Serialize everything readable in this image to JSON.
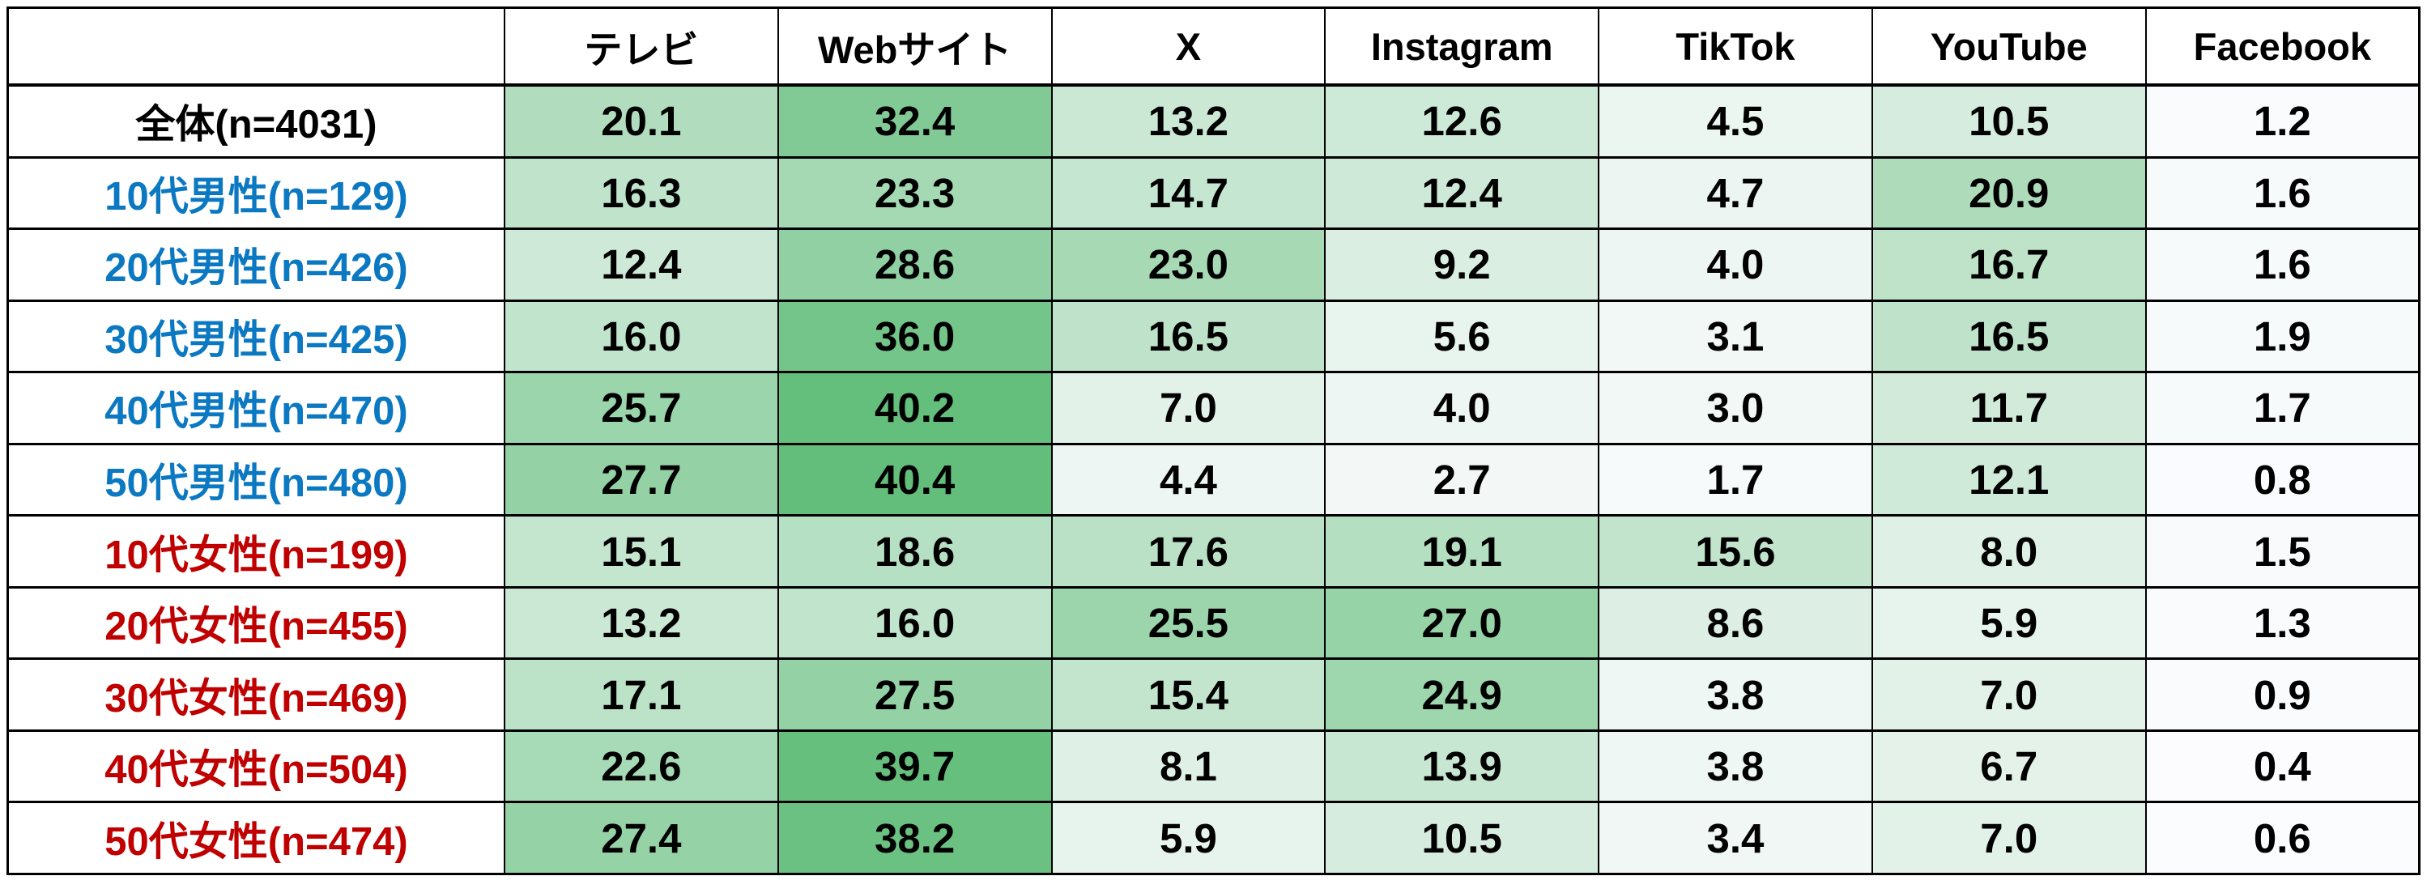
{
  "colors": {
    "overall_label": "#000000",
    "male_label": "#0B78C2",
    "female_label": "#C00000",
    "border": "#000000",
    "header_text": "#000000",
    "value_text": "#000000"
  },
  "heatmap": {
    "min_value": 0.4,
    "max_value": 40.4,
    "min_color": "#FCFCFF",
    "max_color": "#63BE7B"
  },
  "chart_data": {
    "type": "heatmap",
    "title": "",
    "corner_label": "",
    "columns": [
      "テレビ",
      "Webサイト",
      "X",
      "Instagram",
      "TikTok",
      "YouTube",
      "Facebook"
    ],
    "rows": [
      {
        "label": "全体(n=4031)",
        "group": "overall",
        "values": [
          20.1,
          32.4,
          13.2,
          12.6,
          4.5,
          10.5,
          1.2
        ]
      },
      {
        "label": "10代男性(n=129)",
        "group": "male",
        "values": [
          16.3,
          23.3,
          14.7,
          12.4,
          4.7,
          20.9,
          1.6
        ]
      },
      {
        "label": "20代男性(n=426)",
        "group": "male",
        "values": [
          12.4,
          28.6,
          23.0,
          9.2,
          4.0,
          16.7,
          1.6
        ]
      },
      {
        "label": "30代男性(n=425)",
        "group": "male",
        "values": [
          16.0,
          36.0,
          16.5,
          5.6,
          3.1,
          16.5,
          1.9
        ]
      },
      {
        "label": "40代男性(n=470)",
        "group": "male",
        "values": [
          25.7,
          40.2,
          7.0,
          4.0,
          3.0,
          11.7,
          1.7
        ]
      },
      {
        "label": "50代男性(n=480)",
        "group": "male",
        "values": [
          27.7,
          40.4,
          4.4,
          2.7,
          1.7,
          12.1,
          0.8
        ]
      },
      {
        "label": "10代女性(n=199)",
        "group": "female",
        "values": [
          15.1,
          18.6,
          17.6,
          19.1,
          15.6,
          8.0,
          1.5
        ]
      },
      {
        "label": "20代女性(n=455)",
        "group": "female",
        "values": [
          13.2,
          16.0,
          25.5,
          27.0,
          8.6,
          5.9,
          1.3
        ]
      },
      {
        "label": "30代女性(n=469)",
        "group": "female",
        "values": [
          17.1,
          27.5,
          15.4,
          24.9,
          3.8,
          7.0,
          0.9
        ]
      },
      {
        "label": "40代女性(n=504)",
        "group": "female",
        "values": [
          22.6,
          39.7,
          8.1,
          13.9,
          3.8,
          6.7,
          0.4
        ]
      },
      {
        "label": "50代女性(n=474)",
        "group": "female",
        "values": [
          27.4,
          38.2,
          5.9,
          10.5,
          3.4,
          7.0,
          0.6
        ]
      }
    ]
  }
}
